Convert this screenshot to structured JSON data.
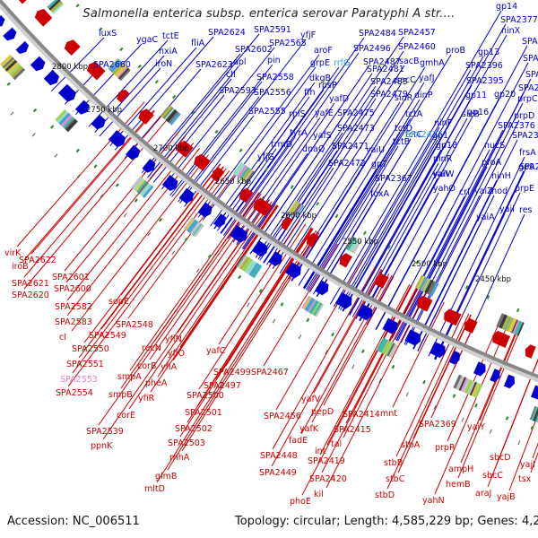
{
  "title": "Salmonella enterica subsp. enterica serovar Paratyphi A str....",
  "footer": {
    "accession_label": "Accession:",
    "accession": "NC_006511",
    "topology_label": "Topology:",
    "topology": "circular;",
    "length_label": "Length:",
    "length": "4,585,229 bp;",
    "genes_label": "Genes:",
    "genes": "4,232"
  },
  "colors": {
    "forward_strand": "#0000cc",
    "reverse_strand": "#cc0000",
    "highlight": "#33a3dc",
    "pseudo": "#e87fc7",
    "backbone": "#888888"
  },
  "ruler_ticks": [
    "2800 kbp",
    "2750 kbp",
    "2700 kbp",
    "2650 kbp",
    "2600 kbp",
    "2550 kbp",
    "2500 kbp",
    "2450 kbp"
  ],
  "forward_labels": [
    "luxS",
    "ygaC",
    "tctE",
    "SPA2624",
    "SPA2591",
    "yfjF",
    "SPA2484",
    "SPA2457",
    "gp14",
    "SPA2377",
    "SPA2660",
    "iroN",
    "nxiA",
    "fliA",
    "SPA2623",
    "SPA2602",
    "SPA2565",
    "aroF",
    "SPA2496",
    "SPA2460",
    "proB",
    "gp13",
    "ninX",
    "SPA2373",
    "apl",
    "pin",
    "grpE",
    "rrfG",
    "SPA2487",
    "sacB",
    "gmhA",
    "SPA2396",
    "SPA2372",
    "cII",
    "SPA2558",
    "dkgB",
    "SPA2481",
    "sacC",
    "yafJ",
    "SPA2395",
    "SPA2371",
    "SPA2593",
    "SPA2556",
    "ffh",
    "rpsP",
    "yafD",
    "SPA2483",
    "SPA2479",
    "SPA2363",
    "SPA2555",
    "rplS",
    "yafE",
    "tctA",
    "dinP",
    "gp11",
    "gp20",
    "prpC",
    "SPA2475",
    "sinR",
    "sieB",
    "gp16",
    "tyrA",
    "yafS",
    "SPA2473",
    "tctC",
    "SPA2437",
    "gp1",
    "prpD",
    "trmD",
    "dnaQ",
    "SPA2471",
    "tctD",
    "ninF",
    "SPA2376",
    "yfjG",
    "SPA2472",
    "tctB",
    "gp18",
    "nucS",
    "SPA2370",
    "yaiU",
    "ninR",
    "frsA",
    "gp7",
    "yaiV",
    "proA",
    "gp9",
    "SPA2367",
    "yaiW",
    "crl",
    "ninH",
    "SPA2384",
    "foxA",
    "yahO",
    "yaiZ",
    "mod",
    "prpE",
    "yaiI",
    "res",
    "yaiA"
  ],
  "reverse_labels": [
    "virK",
    "SPA2622",
    "iroB",
    "SPA2601",
    "SPA2621",
    "SPA2600",
    "SPA2620",
    "sopE",
    "SPA2582",
    "SPA2548",
    "SPA2583",
    "cI",
    "SPA2549",
    "yfiN",
    "SPA2550",
    "recN",
    "yfiO",
    "yafC",
    "SPA2551",
    "corB",
    "yfiA",
    "SPA2499",
    "SPA2467",
    "SPA2553",
    "smpA",
    "pheA",
    "SPA2497",
    "SPA2554",
    "smpB",
    "yfiR",
    "SPA2500",
    "corE",
    "SPA2501",
    "yafV",
    "SPA2539",
    "SPA2502",
    "SPA2456",
    "yafK",
    "pepD",
    "SPA2414",
    "mnt",
    "ppnK",
    "SPA2503",
    "fadE",
    "int",
    "SPA2415",
    "SPA2369",
    "rnhA",
    "SPA2448",
    "tal",
    "stbA",
    "yaiY",
    "SPA2449",
    "SPA2419",
    "prpR",
    "sbcD",
    "glmB",
    "SPA2420",
    "stbB",
    "ampH",
    "sbcC",
    "yajI",
    "mltD",
    "kil",
    "stbC",
    "hemB",
    "araJ",
    "phoE",
    "stbD",
    "yahN",
    "yajB",
    "tsx"
  ]
}
